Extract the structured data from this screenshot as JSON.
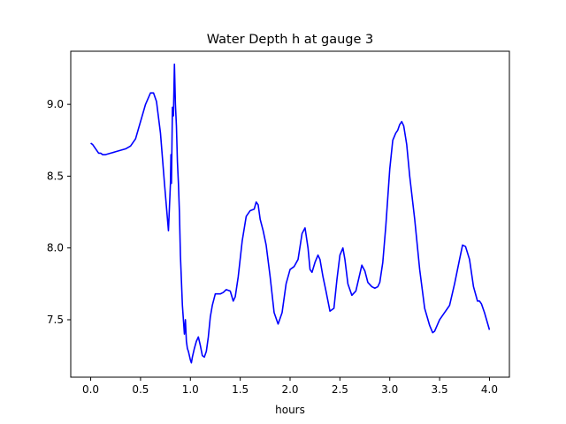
{
  "chart_data": {
    "type": "line",
    "title": "Water Depth h at gauge 3",
    "xlabel": "hours",
    "ylabel": "",
    "xlim": [
      -0.2,
      4.2
    ],
    "ylim": [
      7.1,
      9.37
    ],
    "xticks": [
      0.0,
      0.5,
      1.0,
      1.5,
      2.0,
      2.5,
      3.0,
      3.5,
      4.0
    ],
    "xtick_labels": [
      "0.0",
      "0.5",
      "1.0",
      "1.5",
      "2.0",
      "2.5",
      "3.0",
      "3.5",
      "4.0"
    ],
    "yticks": [
      7.5,
      8.0,
      8.5,
      9.0
    ],
    "ytick_labels": [
      "7.5",
      "8.0",
      "8.5",
      "9.0"
    ],
    "grid": false,
    "series": [
      {
        "color": "#0000ff",
        "x": [
          0.0,
          0.02,
          0.05,
          0.08,
          0.1,
          0.12,
          0.15,
          0.2,
          0.25,
          0.3,
          0.35,
          0.4,
          0.45,
          0.5,
          0.55,
          0.6,
          0.63,
          0.66,
          0.7,
          0.74,
          0.78,
          0.8,
          0.805,
          0.81,
          0.82,
          0.83,
          0.84,
          0.85,
          0.86,
          0.87,
          0.88,
          0.89,
          0.9,
          0.92,
          0.94,
          0.95,
          0.96,
          0.97,
          0.98,
          0.99,
          1.0,
          1.01,
          1.02,
          1.04,
          1.06,
          1.08,
          1.1,
          1.12,
          1.14,
          1.16,
          1.18,
          1.2,
          1.22,
          1.25,
          1.28,
          1.3,
          1.33,
          1.36,
          1.4,
          1.43,
          1.45,
          1.48,
          1.52,
          1.56,
          1.6,
          1.64,
          1.66,
          1.68,
          1.7,
          1.73,
          1.76,
          1.8,
          1.84,
          1.88,
          1.92,
          1.96,
          2.0,
          2.04,
          2.08,
          2.12,
          2.15,
          2.18,
          2.2,
          2.22,
          2.25,
          2.28,
          2.3,
          2.33,
          2.36,
          2.4,
          2.44,
          2.47,
          2.5,
          2.53,
          2.55,
          2.58,
          2.62,
          2.66,
          2.7,
          2.72,
          2.75,
          2.78,
          2.82,
          2.85,
          2.88,
          2.9,
          2.93,
          2.96,
          3.0,
          3.03,
          3.06,
          3.08,
          3.1,
          3.12,
          3.14,
          3.17,
          3.2,
          3.25,
          3.3,
          3.35,
          3.4,
          3.43,
          3.45,
          3.5,
          3.55,
          3.6,
          3.65,
          3.7,
          3.73,
          3.76,
          3.8,
          3.84,
          3.88,
          3.9,
          3.92,
          3.95,
          4.0
        ],
        "y": [
          8.73,
          8.72,
          8.69,
          8.66,
          8.66,
          8.65,
          8.65,
          8.66,
          8.67,
          8.68,
          8.69,
          8.71,
          8.76,
          8.88,
          9.0,
          9.08,
          9.08,
          9.02,
          8.8,
          8.45,
          8.12,
          8.45,
          8.65,
          8.45,
          8.98,
          8.92,
          9.28,
          9.0,
          8.85,
          8.6,
          8.45,
          8.25,
          7.95,
          7.6,
          7.4,
          7.5,
          7.35,
          7.3,
          7.28,
          7.25,
          7.22,
          7.2,
          7.24,
          7.3,
          7.35,
          7.38,
          7.32,
          7.25,
          7.24,
          7.28,
          7.38,
          7.52,
          7.6,
          7.68,
          7.68,
          7.68,
          7.69,
          7.71,
          7.7,
          7.63,
          7.66,
          7.8,
          8.05,
          8.22,
          8.26,
          8.27,
          8.32,
          8.3,
          8.2,
          8.12,
          8.02,
          7.8,
          7.55,
          7.47,
          7.55,
          7.75,
          7.85,
          7.87,
          7.92,
          8.1,
          8.14,
          8.0,
          7.85,
          7.83,
          7.9,
          7.95,
          7.92,
          7.8,
          7.7,
          7.56,
          7.58,
          7.78,
          7.95,
          8.0,
          7.92,
          7.75,
          7.67,
          7.7,
          7.82,
          7.88,
          7.84,
          7.76,
          7.73,
          7.72,
          7.73,
          7.76,
          7.9,
          8.15,
          8.55,
          8.75,
          8.8,
          8.82,
          8.86,
          8.88,
          8.85,
          8.72,
          8.5,
          8.2,
          7.85,
          7.58,
          7.46,
          7.41,
          7.42,
          7.5,
          7.55,
          7.6,
          7.75,
          7.92,
          8.02,
          8.01,
          7.92,
          7.73,
          7.63,
          7.63,
          7.61,
          7.55,
          7.43
        ]
      }
    ]
  }
}
